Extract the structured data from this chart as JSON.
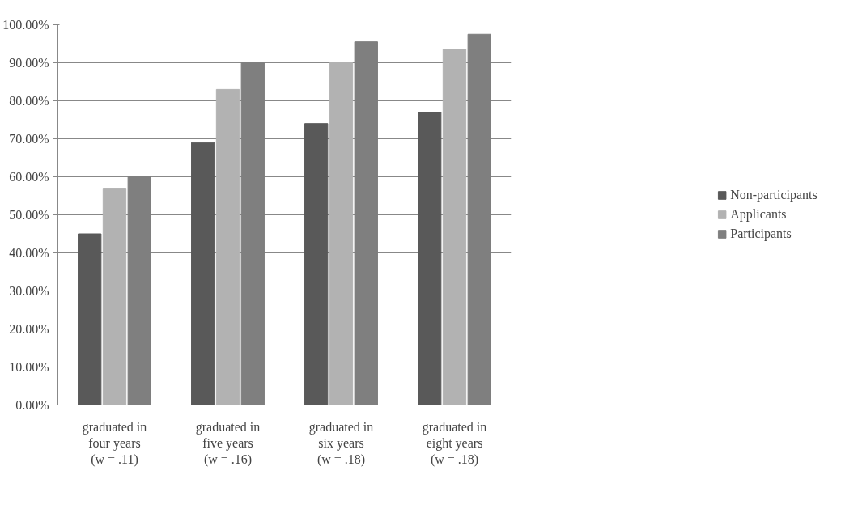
{
  "chart_data": {
    "type": "bar",
    "categories": [
      "graduated in\nfour years\n(w = .11)",
      "graduated in\nfive years\n(w = .16)",
      "graduated in\nsix years\n(w = .18)",
      "graduated in\neight years\n(w = .18)"
    ],
    "series": [
      {
        "name": "Non-participants",
        "color": "#595959",
        "values": [
          45,
          69,
          74,
          77
        ]
      },
      {
        "name": "Applicants",
        "color": "#b2b2b2",
        "values": [
          57,
          83,
          90,
          93.5
        ]
      },
      {
        "name": "Participants",
        "color": "#7f7f7f",
        "values": [
          60,
          90,
          95.5,
          97.5
        ]
      }
    ],
    "ylim": [
      0,
      100
    ],
    "yticks": [
      {
        "value": 0,
        "label": "0.00%"
      },
      {
        "value": 10,
        "label": "10.00%"
      },
      {
        "value": 20,
        "label": "20.00%"
      },
      {
        "value": 30,
        "label": "30.00%"
      },
      {
        "value": 40,
        "label": "40.00%"
      },
      {
        "value": 50,
        "label": "50.00%"
      },
      {
        "value": 60,
        "label": "60.00%"
      },
      {
        "value": 70,
        "label": "70.00%"
      },
      {
        "value": 80,
        "label": "80.00%"
      },
      {
        "value": 90,
        "label": "90.00%"
      },
      {
        "value": 100,
        "label": "100.00%"
      }
    ],
    "grid": "y",
    "legend": "right"
  }
}
